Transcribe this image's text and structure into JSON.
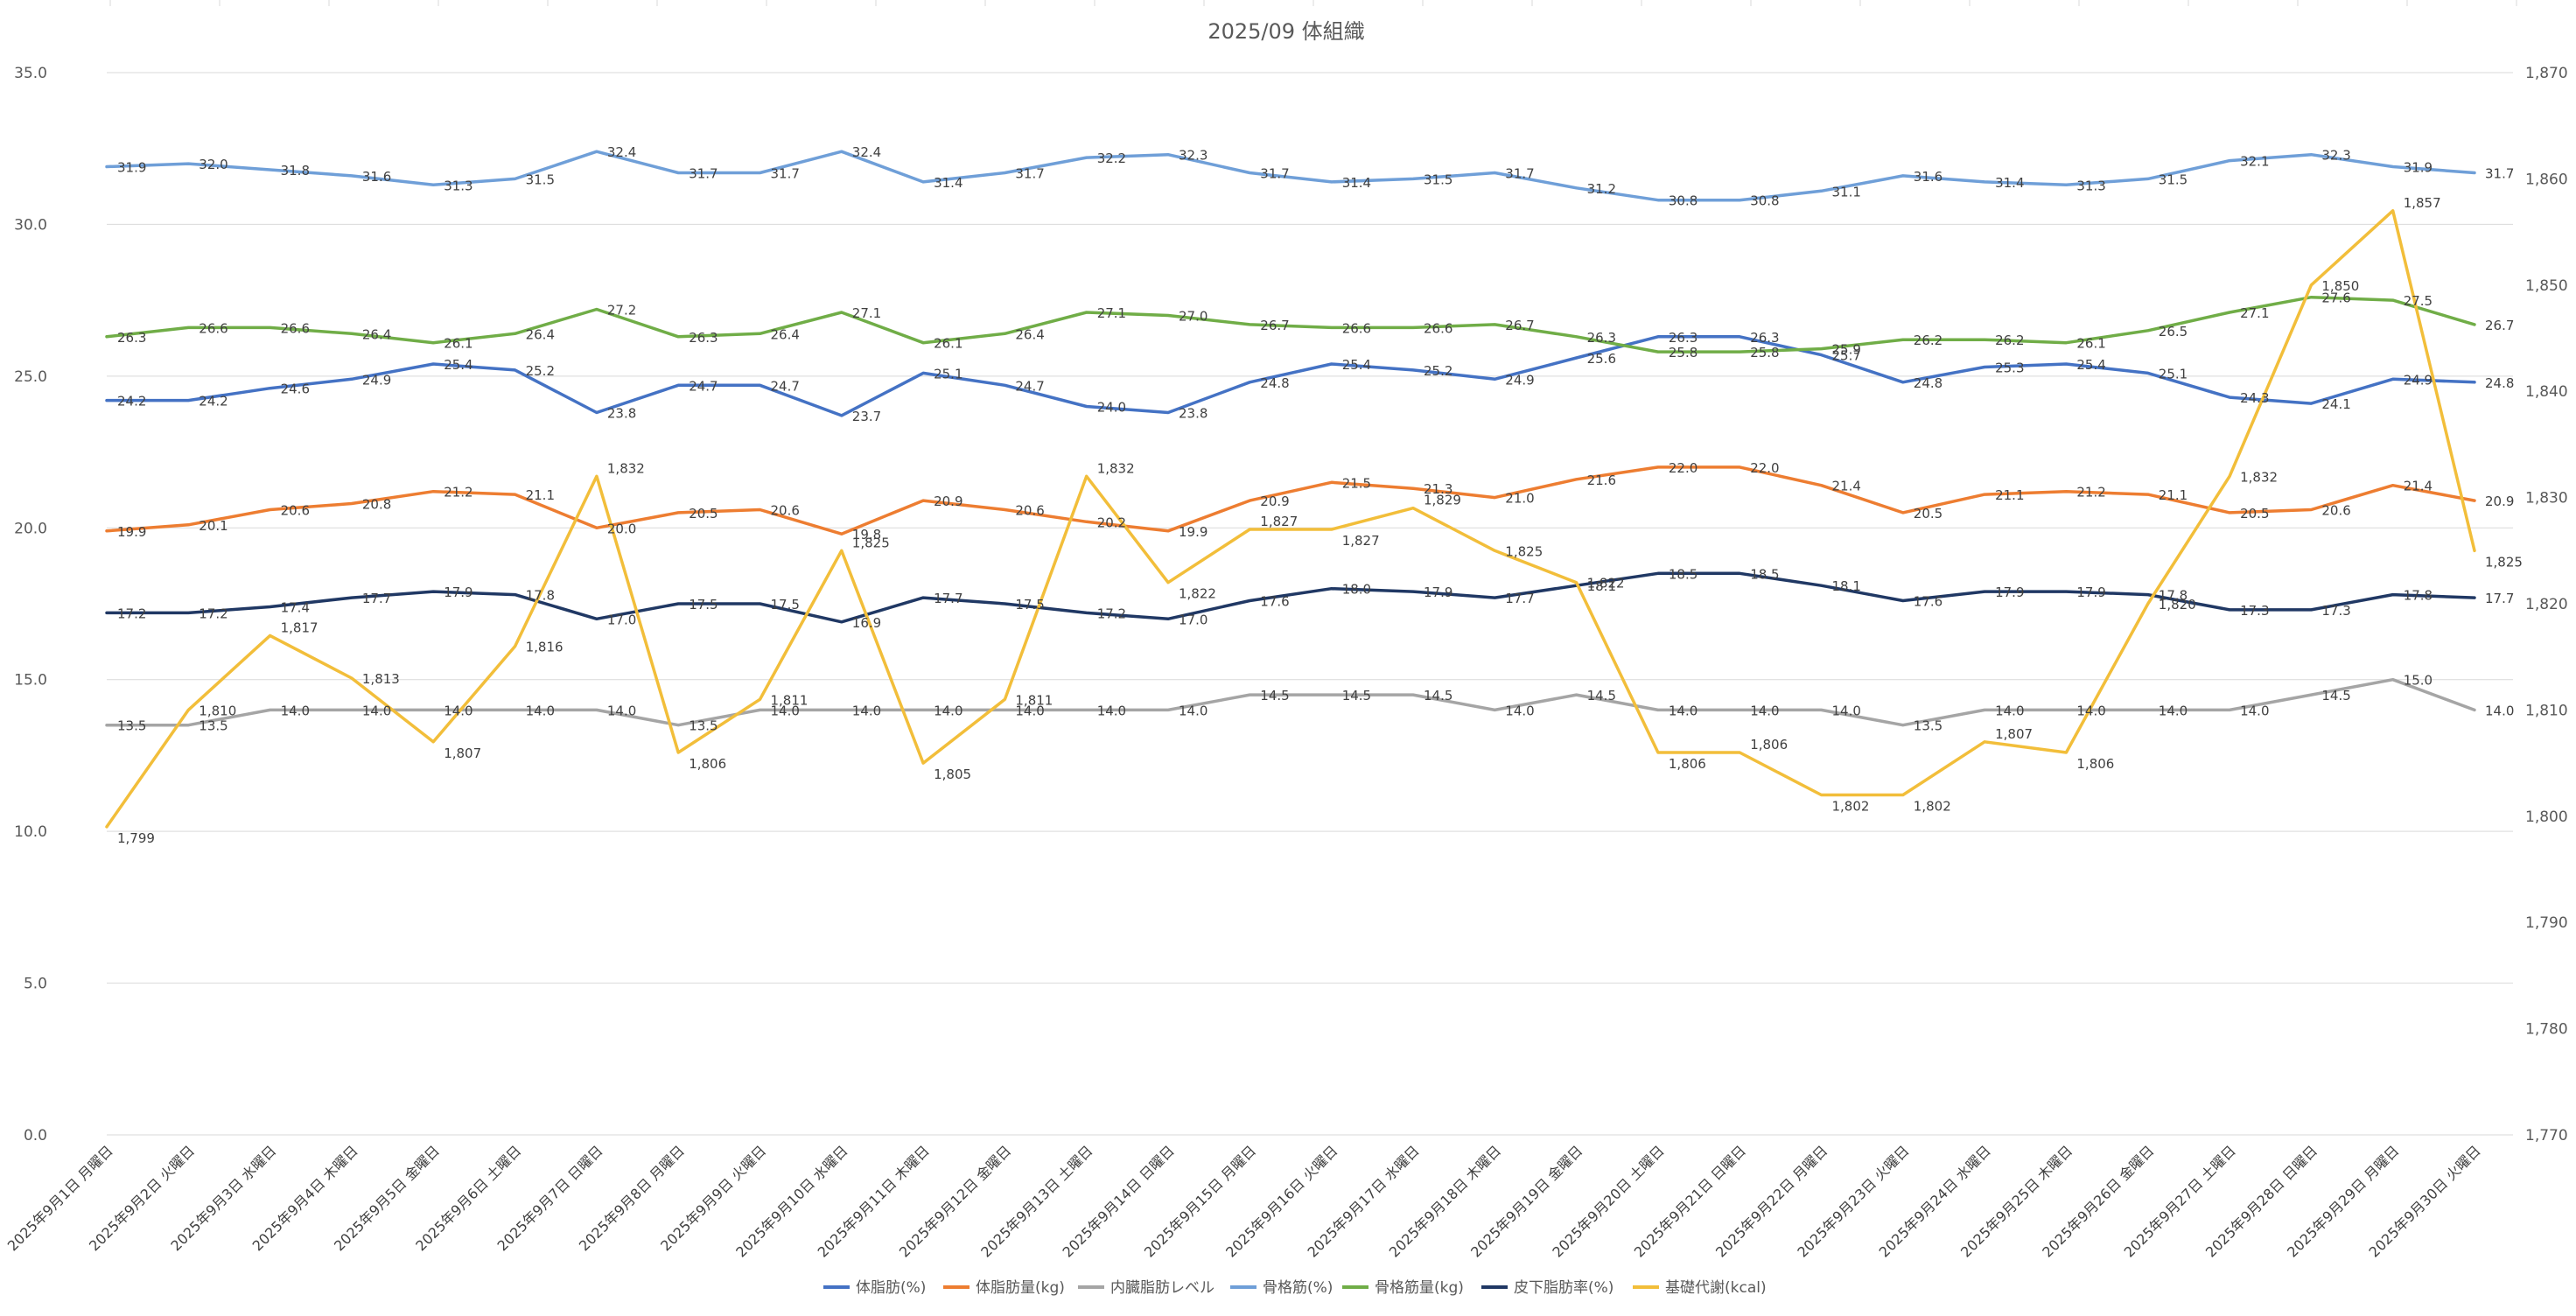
{
  "chart_data": {
    "type": "line",
    "title": "2025/09 体組織",
    "categories": [
      "2025年9月1日 月曜日",
      "2025年9月2日 火曜日",
      "2025年9月3日 水曜日",
      "2025年9月4日 木曜日",
      "2025年9月5日 金曜日",
      "2025年9月6日 土曜日",
      "2025年9月7日 日曜日",
      "2025年9月8日 月曜日",
      "2025年9月9日 火曜日",
      "2025年9月10日 水曜日",
      "2025年9月11日 木曜日",
      "2025年9月12日 金曜日",
      "2025年9月13日 土曜日",
      "2025年9月14日 日曜日",
      "2025年9月15日 月曜日",
      "2025年9月16日 火曜日",
      "2025年9月17日 水曜日",
      "2025年9月18日 木曜日",
      "2025年9月19日 金曜日",
      "2025年9月20日 土曜日",
      "2025年9月21日 日曜日",
      "2025年9月22日 月曜日",
      "2025年9月23日 火曜日",
      "2025年9月24日 水曜日",
      "2025年9月25日 木曜日",
      "2025年9月26日 金曜日",
      "2025年9月27日 土曜日",
      "2025年9月28日 日曜日",
      "2025年9月29日 月曜日",
      "2025年9月30日 火曜日"
    ],
    "y_left": {
      "min": 0,
      "max": 35,
      "step": 5,
      "tick_labels": [
        "0.0",
        "5.0",
        "10.0",
        "15.0",
        "20.0",
        "25.0",
        "30.0",
        "35.0"
      ]
    },
    "y_right": {
      "min": 1770,
      "max": 1870,
      "step": 10,
      "tick_labels": [
        "1,770",
        "1,780",
        "1,790",
        "1,800",
        "1,810",
        "1,820",
        "1,830",
        "1,840",
        "1,850",
        "1,860",
        "1,870"
      ]
    },
    "grid": true,
    "legend_position": "bottom",
    "series": [
      {
        "name": "体脂肪(%)",
        "color": "#4472C4",
        "axis": "left",
        "values": [
          24.2,
          24.2,
          24.6,
          24.9,
          25.4,
          25.2,
          23.8,
          24.7,
          24.7,
          23.7,
          25.1,
          24.7,
          24.0,
          23.8,
          24.8,
          25.4,
          25.2,
          24.9,
          25.6,
          26.3,
          26.3,
          25.7,
          24.8,
          25.3,
          25.4,
          25.1,
          24.3,
          24.1,
          24.9,
          24.8
        ],
        "labels": [
          "24.2",
          "24.2",
          "24.6",
          "24.9",
          "25.4",
          "25.2",
          "23.8",
          "24.7",
          "24.7",
          "23.7",
          "25.1",
          "24.7",
          "24.0",
          "23.8",
          "24.8",
          "25.4",
          "25.2",
          "24.9",
          "25.6",
          "26.3",
          "26.3",
          "25.7",
          "24.8",
          "25.3",
          "25.4",
          "25.1",
          "24.3",
          "24.1",
          "24.9",
          "24.8"
        ]
      },
      {
        "name": "体脂肪量(kg)",
        "color": "#ED7D31",
        "axis": "left",
        "values": [
          19.9,
          20.1,
          20.6,
          20.8,
          21.2,
          21.1,
          20.0,
          20.5,
          20.6,
          19.8,
          20.9,
          20.6,
          20.2,
          19.9,
          20.9,
          21.5,
          21.3,
          21.0,
          21.6,
          22.0,
          22.0,
          21.4,
          20.5,
          21.1,
          21.2,
          21.1,
          20.5,
          20.6,
          21.4,
          20.9
        ],
        "labels": [
          "19.9",
          "20.1",
          "20.6",
          "20.8",
          "21.2",
          "21.1",
          "20.0",
          "20.5",
          "20.6",
          "19.8",
          "20.9",
          "20.6",
          "20.2",
          "19.9",
          "20.9",
          "21.5",
          "21.3",
          "21.0",
          "21.6",
          "22.0",
          "22.0",
          "21.4",
          "20.5",
          "21.1",
          "21.2",
          "21.1",
          "20.5",
          "20.6",
          "21.4",
          "20.9"
        ]
      },
      {
        "name": "内臓脂肪レベル",
        "color": "#A5A5A5",
        "axis": "left",
        "values": [
          13.5,
          13.5,
          14.0,
          14.0,
          14.0,
          14.0,
          14.0,
          13.5,
          14.0,
          14.0,
          14.0,
          14.0,
          14.0,
          14.0,
          14.5,
          14.5,
          14.5,
          14.0,
          14.5,
          14.0,
          14.0,
          14.0,
          13.5,
          14.0,
          14.0,
          14.0,
          14.0,
          14.5,
          15.0,
          14.0
        ],
        "labels": [
          "13.5",
          "13.5",
          "14.0",
          "14.0",
          "14.0",
          "14.0",
          "14.0",
          "13.5",
          "14.0",
          "14.0",
          "14.0",
          "14.0",
          "14.0",
          "14.0",
          "14.5",
          "14.5",
          "14.5",
          "14.0",
          "14.5",
          "14.0",
          "14.0",
          "14.0",
          "13.5",
          "14.0",
          "14.0",
          "14.0",
          "14.0",
          "14.5",
          "15.0",
          "14.0"
        ]
      },
      {
        "name": "骨格筋(%)",
        "color": "#6F9FD8",
        "axis": "left",
        "values": [
          31.9,
          32.0,
          31.8,
          31.6,
          31.3,
          31.5,
          32.4,
          31.7,
          31.7,
          32.4,
          31.4,
          31.7,
          32.2,
          32.3,
          31.7,
          31.4,
          31.5,
          31.7,
          31.2,
          30.8,
          30.8,
          31.1,
          31.6,
          31.4,
          31.3,
          31.5,
          32.1,
          32.3,
          31.9,
          31.7
        ],
        "labels": [
          "31.9",
          "32.0",
          "31.8",
          "31.6",
          "31.3",
          "31.5",
          "32.4",
          "31.7",
          "31.7",
          "32.4",
          "31.4",
          "31.7",
          "32.2",
          "32.3",
          "31.7",
          "31.4",
          "31.5",
          "31.7",
          "31.2",
          "30.8",
          "30.8",
          "31.1",
          "31.6",
          "31.4",
          "31.3",
          "31.5",
          "32.1",
          "32.3",
          "31.9",
          "31.7"
        ]
      },
      {
        "name": "骨格筋量(kg)",
        "color": "#70AD47",
        "axis": "left",
        "values": [
          26.3,
          26.6,
          26.6,
          26.4,
          26.1,
          26.4,
          27.2,
          26.3,
          26.4,
          27.1,
          26.1,
          26.4,
          27.1,
          27.0,
          26.7,
          26.6,
          26.6,
          26.7,
          26.3,
          25.8,
          25.8,
          25.9,
          26.2,
          26.2,
          26.1,
          26.5,
          27.1,
          27.6,
          27.5,
          26.7
        ],
        "labels": [
          "26.3",
          "26.6",
          "26.6",
          "26.4",
          "26.1",
          "26.4",
          "27.2",
          "26.3",
          "26.4",
          "27.1",
          "26.1",
          "26.4",
          "27.1",
          "27.0",
          "26.7",
          "26.6",
          "26.6",
          "26.7",
          "26.3",
          "25.8",
          "25.8",
          "25.9",
          "26.2",
          "26.2",
          "26.1",
          "26.5",
          "27.1",
          "27.6",
          "27.5",
          "26.7"
        ]
      },
      {
        "name": "皮下脂肪率(%)",
        "color": "#203864",
        "axis": "left",
        "values": [
          17.2,
          17.2,
          17.4,
          17.7,
          17.9,
          17.8,
          17.0,
          17.5,
          17.5,
          16.9,
          17.7,
          17.5,
          17.2,
          17.0,
          17.6,
          18.0,
          17.9,
          17.7,
          18.1,
          18.5,
          18.5,
          18.1,
          17.6,
          17.9,
          17.9,
          17.8,
          17.3,
          17.3,
          17.8,
          17.7
        ],
        "labels": [
          "17.2",
          "17.2",
          "17.4",
          "17.7",
          "17.9",
          "17.8",
          "17.0",
          "17.5",
          "17.5",
          "16.9",
          "17.7",
          "17.5",
          "17.2",
          "17.0",
          "17.6",
          "18.0",
          "17.9",
          "17.7",
          "18.1",
          "18.5",
          "18.5",
          "18.1",
          "17.6",
          "17.9",
          "17.9",
          "17.8",
          "17.3",
          "17.3",
          "17.8",
          "17.7"
        ]
      },
      {
        "name": "基礎代謝(kcal)",
        "color": "#F2BE3A",
        "axis": "right",
        "values": [
          1799,
          1810,
          1817,
          1813,
          1807,
          1816,
          1832,
          1806,
          1811,
          1825,
          1805,
          1811,
          1832,
          1822,
          1827,
          1827,
          1829,
          1825,
          1822,
          1806,
          1806,
          1802,
          1802,
          1807,
          1806,
          1820,
          1832,
          1850,
          1857,
          1825
        ],
        "labels": [
          "1,799",
          "1,810",
          "1,817",
          "1,813",
          "1,807",
          "1,816",
          "1,832",
          "1,806",
          "1,811",
          "1,825",
          "1,805",
          "1,811",
          "1,832",
          "1,822",
          "1,827",
          "1,827",
          "1,829",
          "1,825",
          "1,822",
          "1,806",
          "1,806",
          "1,802",
          "1,802",
          "1,807",
          "1,806",
          "1,820",
          "1,832",
          "1,850",
          "1,857",
          "1,825"
        ]
      }
    ]
  }
}
